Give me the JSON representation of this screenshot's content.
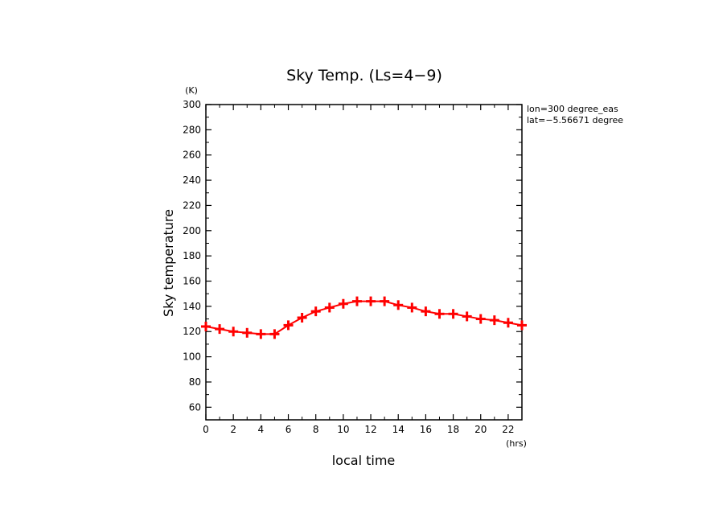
{
  "chart_data": {
    "type": "line",
    "title": "Sky Temp. (Ls=4−9)",
    "xlabel": "local time",
    "ylabel": "Sky temperature",
    "x_unit": "(hrs)",
    "y_unit": "(K)",
    "annotations": [
      "lon=300 degree_eas",
      "lat=−5.56671 degree"
    ],
    "xlim": [
      0,
      23
    ],
    "ylim": [
      50,
      300
    ],
    "x_ticks": [
      0,
      2,
      4,
      6,
      8,
      10,
      12,
      14,
      16,
      18,
      20,
      22
    ],
    "y_ticks": [
      60,
      80,
      100,
      120,
      140,
      160,
      180,
      200,
      220,
      240,
      260,
      280,
      300
    ],
    "grid": false,
    "series": [
      {
        "color": "#ff0000",
        "marker": "plus",
        "x": [
          0,
          1,
          2,
          3,
          4,
          5,
          6,
          7,
          8,
          9,
          10,
          11,
          12,
          13,
          14,
          15,
          16,
          17,
          18,
          19,
          20,
          21,
          22,
          23
        ],
        "values": [
          124,
          122,
          120,
          119,
          118,
          118,
          125,
          131,
          136,
          139,
          142,
          144,
          144,
          144,
          141,
          139,
          136,
          134,
          134,
          132,
          130,
          129,
          127,
          125
        ]
      }
    ]
  }
}
